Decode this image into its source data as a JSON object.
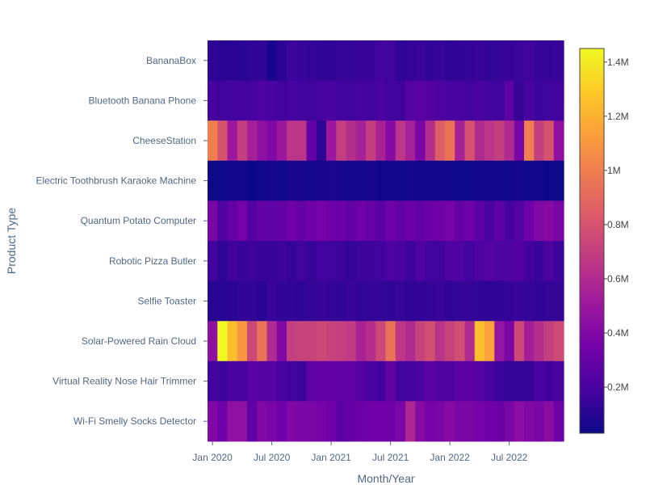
{
  "chart_data": {
    "type": "heatmap",
    "title": "",
    "xlabel": "Month/Year",
    "ylabel": "Product Type",
    "x_tick_labels": [
      "Jan 2020",
      "Jul 2020",
      "Jan 2021",
      "Jul 2021",
      "Jan 2022",
      "Jul 2022"
    ],
    "x_start": "2020-01",
    "x_months": 36,
    "categories": [
      "BananaBox",
      "Bluetooth Banana Phone",
      "CheeseStation",
      "Electric Toothbrush Karaoke Machine",
      "Quantum Potato Computer",
      "Robotic Pizza Butler",
      "Selfie Toaster",
      "Solar-Powered Rain Cloud",
      "Virtual Reality Nose Hair Trimmer",
      "Wi-Fi Smelly Socks Detector"
    ],
    "values": [
      [
        120000,
        110000,
        110000,
        100000,
        120000,
        130000,
        60000,
        110000,
        160000,
        150000,
        140000,
        130000,
        120000,
        140000,
        140000,
        150000,
        150000,
        180000,
        170000,
        120000,
        140000,
        150000,
        130000,
        140000,
        120000,
        130000,
        140000,
        150000,
        130000,
        140000,
        150000,
        160000,
        170000,
        150000,
        140000,
        150000
      ],
      [
        190000,
        170000,
        180000,
        180000,
        190000,
        210000,
        200000,
        170000,
        190000,
        180000,
        170000,
        190000,
        200000,
        180000,
        170000,
        190000,
        180000,
        200000,
        180000,
        170000,
        240000,
        260000,
        230000,
        210000,
        200000,
        190000,
        180000,
        200000,
        180000,
        170000,
        260000,
        140000,
        200000,
        160000,
        170000,
        180000
      ],
      [
        1000000,
        800000,
        500000,
        700000,
        550000,
        450000,
        400000,
        500000,
        650000,
        650000,
        300000,
        120000,
        500000,
        700000,
        620000,
        550000,
        700000,
        560000,
        420000,
        650000,
        550000,
        380000,
        620000,
        850000,
        950000,
        550000,
        800000,
        600000,
        650000,
        700000,
        600000,
        380000,
        1000000,
        700000,
        800000,
        450000
      ],
      [
        30000,
        30000,
        40000,
        40000,
        30000,
        40000,
        50000,
        40000,
        60000,
        60000,
        50000,
        60000,
        70000,
        60000,
        50000,
        50000,
        60000,
        40000,
        40000,
        40000,
        50000,
        40000,
        40000,
        40000,
        40000,
        30000,
        30000,
        40000,
        40000,
        40000,
        40000,
        50000,
        40000,
        40000,
        30000,
        30000
      ],
      [
        380000,
        220000,
        300000,
        360000,
        240000,
        300000,
        280000,
        300000,
        330000,
        300000,
        340000,
        360000,
        340000,
        320000,
        290000,
        340000,
        310000,
        260000,
        330000,
        290000,
        320000,
        300000,
        320000,
        340000,
        360000,
        300000,
        330000,
        270000,
        200000,
        270000,
        190000,
        240000,
        330000,
        400000,
        420000,
        380000
      ],
      [
        180000,
        120000,
        170000,
        150000,
        160000,
        150000,
        150000,
        160000,
        140000,
        170000,
        140000,
        180000,
        170000,
        160000,
        140000,
        160000,
        160000,
        180000,
        210000,
        200000,
        160000,
        220000,
        180000,
        170000,
        220000,
        220000,
        180000,
        210000,
        240000,
        220000,
        220000,
        230000,
        180000,
        150000,
        210000,
        160000
      ],
      [
        100000,
        100000,
        110000,
        130000,
        130000,
        110000,
        150000,
        130000,
        130000,
        120000,
        140000,
        150000,
        140000,
        130000,
        150000,
        130000,
        140000,
        140000,
        130000,
        140000,
        130000,
        130000,
        140000,
        150000,
        130000,
        140000,
        140000,
        130000,
        120000,
        130000,
        140000,
        150000,
        140000,
        130000,
        140000,
        140000
      ],
      [
        450000,
        1450000,
        1250000,
        1100000,
        750000,
        950000,
        600000,
        400000,
        700000,
        720000,
        720000,
        750000,
        720000,
        700000,
        680000,
        560000,
        620000,
        750000,
        950000,
        660000,
        600000,
        720000,
        780000,
        640000,
        720000,
        780000,
        600000,
        1250000,
        1150000,
        480000,
        380000,
        750000,
        540000,
        620000,
        700000,
        760000
      ],
      [
        180000,
        160000,
        200000,
        200000,
        260000,
        240000,
        240000,
        200000,
        180000,
        160000,
        280000,
        300000,
        300000,
        280000,
        280000,
        240000,
        200000,
        180000,
        280000,
        180000,
        180000,
        200000,
        260000,
        220000,
        220000,
        260000,
        260000,
        240000,
        200000,
        160000,
        140000,
        140000,
        140000,
        200000,
        180000,
        200000
      ],
      [
        400000,
        340000,
        460000,
        460000,
        280000,
        400000,
        380000,
        340000,
        400000,
        380000,
        380000,
        360000,
        340000,
        260000,
        300000,
        320000,
        340000,
        340000,
        340000,
        380000,
        580000,
        420000,
        360000,
        380000,
        420000,
        380000,
        380000,
        360000,
        340000,
        320000,
        380000,
        440000,
        400000,
        380000,
        440000,
        320000
      ]
    ],
    "colorscale": [
      "#0d0887",
      "#46039f",
      "#7201a8",
      "#9c179e",
      "#bd3786",
      "#d8576b",
      "#ed7953",
      "#fb9f3a",
      "#fdca26",
      "#f0f921"
    ],
    "zlim": [
      30000,
      1450000
    ],
    "colorbar_ticks": [
      {
        "value": 200000,
        "label": "0.2M"
      },
      {
        "value": 400000,
        "label": "0.4M"
      },
      {
        "value": 600000,
        "label": "0.6M"
      },
      {
        "value": 800000,
        "label": "0.8M"
      },
      {
        "value": 1000000,
        "label": "1M"
      },
      {
        "value": 1200000,
        "label": "1.2M"
      },
      {
        "value": 1400000,
        "label": "1.4M"
      }
    ],
    "grid": false
  }
}
